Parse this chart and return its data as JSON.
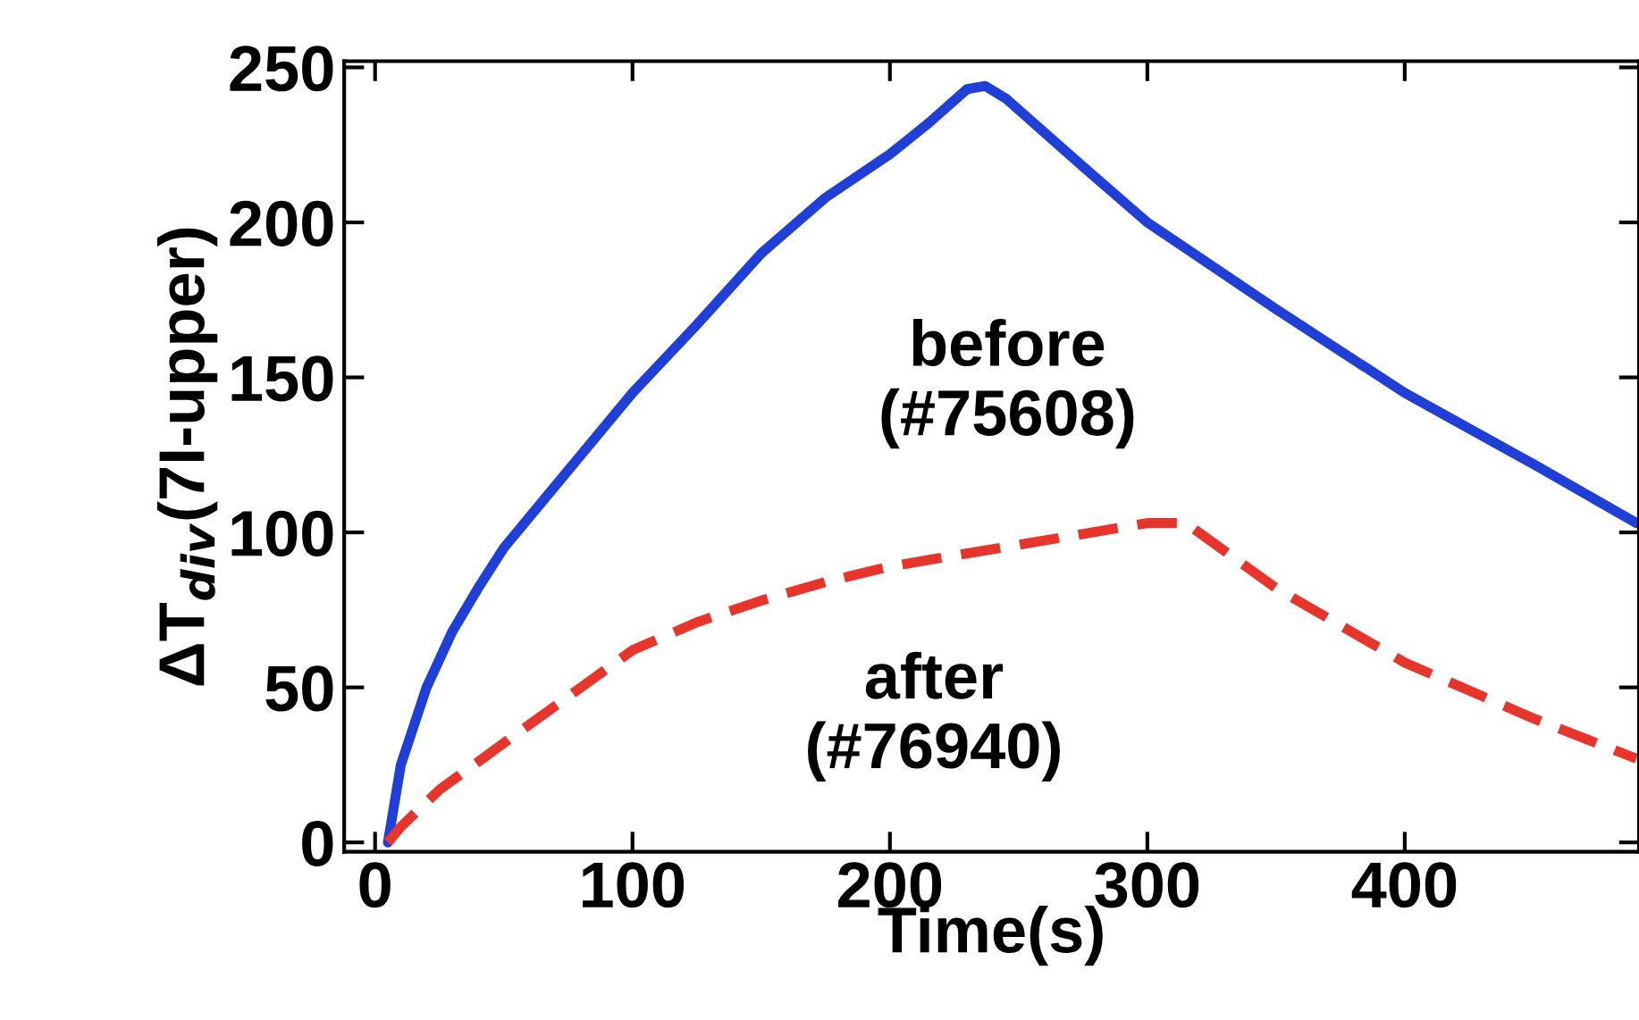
{
  "chart_data": {
    "type": "line",
    "xlabel": "Time(s)",
    "ylabel": "ΔT$_{div}$(7I-upper)",
    "xlim": [
      -12,
      491
    ],
    "ylim": [
      -3,
      252
    ],
    "xticks": [
      0,
      100,
      200,
      300,
      400
    ],
    "yticks": [
      0,
      50,
      100,
      150,
      200,
      250
    ],
    "grid": false,
    "legend": false,
    "marker": "none",
    "series": [
      {
        "name": "before\n(#75608)",
        "color": "#1f3fd6",
        "line_style": "solid",
        "x": [
          5,
          10,
          20,
          30,
          40,
          50,
          75,
          100,
          125,
          150,
          175,
          200,
          215,
          230,
          237,
          245,
          275,
          300,
          350,
          400,
          450,
          490
        ],
        "values": [
          0,
          25,
          50,
          68,
          82,
          95,
          120,
          145,
          167,
          190,
          208,
          222,
          232,
          243,
          244,
          240,
          218,
          200,
          172,
          145,
          122,
          103
        ]
      },
      {
        "name": "after\n(#76940)",
        "color": "#e8352b",
        "line_style": "dashed",
        "x": [
          5,
          10,
          25,
          50,
          75,
          100,
          125,
          150,
          175,
          200,
          250,
          300,
          315,
          350,
          400,
          450,
          490
        ],
        "values": [
          0,
          5,
          17,
          32,
          47,
          62,
          71,
          78,
          84,
          89,
          96,
          103,
          103,
          82,
          58,
          40,
          27
        ]
      }
    ]
  }
}
